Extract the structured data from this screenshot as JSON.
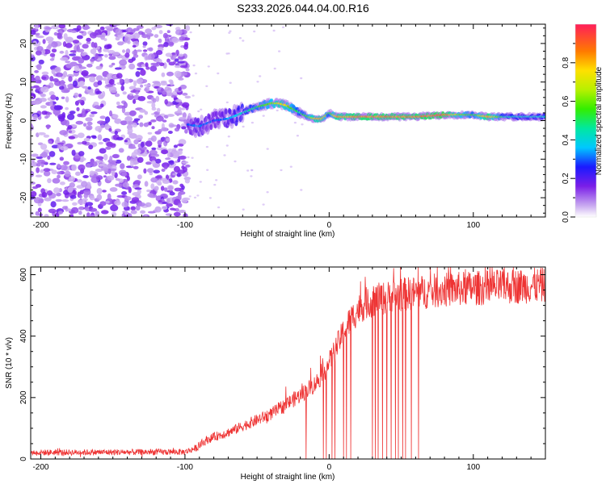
{
  "title": "S233.2026.044.04.00.R16",
  "chart_data": [
    {
      "type": "heatmap",
      "xlabel": "Height of straight line (km)",
      "ylabel": "Frequency (Hz)",
      "xlim": [
        -207,
        150
      ],
      "ylim": [
        -25,
        25
      ],
      "xticks": [
        -200,
        -100,
        0,
        100
      ],
      "yticks": [
        -20,
        -10,
        0,
        10,
        20
      ],
      "xtick_labels": [
        "-200",
        "-100",
        "0",
        "100"
      ],
      "ytick_labels": [
        "-20",
        "-10",
        "0",
        "10",
        "20"
      ],
      "colorbar": {
        "label": "Normalized spectral amplitude",
        "range": [
          0.0,
          1.0
        ],
        "ticks": [
          0.0,
          0.2,
          0.4,
          0.6,
          0.8
        ],
        "tick_labels": [
          "0.0",
          "0.2",
          "0.4",
          "0.6",
          "0.8"
        ]
      },
      "noise_region_end_km": -98,
      "signal_track": {
        "x": [
          -98,
          -90,
          -80,
          -70,
          -60,
          -50,
          -45,
          -40,
          -35,
          -30,
          -25,
          -20,
          -15,
          -10,
          -5,
          0,
          5,
          10,
          20,
          40,
          60,
          80,
          90,
          100,
          110,
          120,
          130,
          140,
          150
        ],
        "freq": [
          -1,
          -1.5,
          0,
          0.5,
          2,
          3.5,
          4,
          4.5,
          4.5,
          4,
          3,
          2,
          1,
          0.5,
          0.5,
          2,
          1,
          1,
          1,
          1,
          1,
          1.5,
          1.5,
          1.5,
          1,
          1,
          1,
          1,
          1
        ],
        "amplitude": [
          0.3,
          0.35,
          0.3,
          0.35,
          0.45,
          0.55,
          0.6,
          0.65,
          0.8,
          0.75,
          0.6,
          0.5,
          0.6,
          0.8,
          0.85,
          0.5,
          0.85,
          0.85,
          0.9,
          0.9,
          0.9,
          0.95,
          0.7,
          0.55,
          0.9,
          0.5,
          0.45,
          0.45,
          0.45
        ]
      }
    },
    {
      "type": "line",
      "xlabel": "Height of straight line (km)",
      "ylabel": "SNR (10 * v/v)",
      "xlim": [
        -207,
        150
      ],
      "ylim": [
        0,
        625
      ],
      "xticks": [
        -200,
        -100,
        0,
        100
      ],
      "yticks": [
        0,
        200,
        400,
        600
      ],
      "xtick_labels": [
        "-200",
        "-100",
        "0",
        "100"
      ],
      "ytick_labels": [
        "0",
        "200",
        "400",
        "600"
      ],
      "series": [
        {
          "name": "SNR",
          "color": "#ee3333",
          "trend_x": [
            -207,
            -100,
            -92,
            -85,
            -80,
            -70,
            -60,
            -50,
            -40,
            -30,
            -20,
            -10,
            -5,
            0,
            5,
            10,
            15,
            20,
            25,
            30,
            40,
            50,
            60,
            70,
            80,
            100,
            120,
            150
          ],
          "trend_y": [
            20,
            22,
            35,
            60,
            70,
            85,
            105,
            125,
            145,
            175,
            205,
            240,
            270,
            310,
            360,
            410,
            450,
            480,
            500,
            510,
            520,
            530,
            535,
            540,
            545,
            550,
            555,
            560
          ],
          "dropout_x": [
            -16,
            -4,
            -2,
            2,
            4,
            10,
            12,
            15,
            30,
            32,
            34,
            37,
            40,
            43,
            46,
            48,
            51,
            53,
            57,
            62
          ]
        }
      ]
    }
  ]
}
